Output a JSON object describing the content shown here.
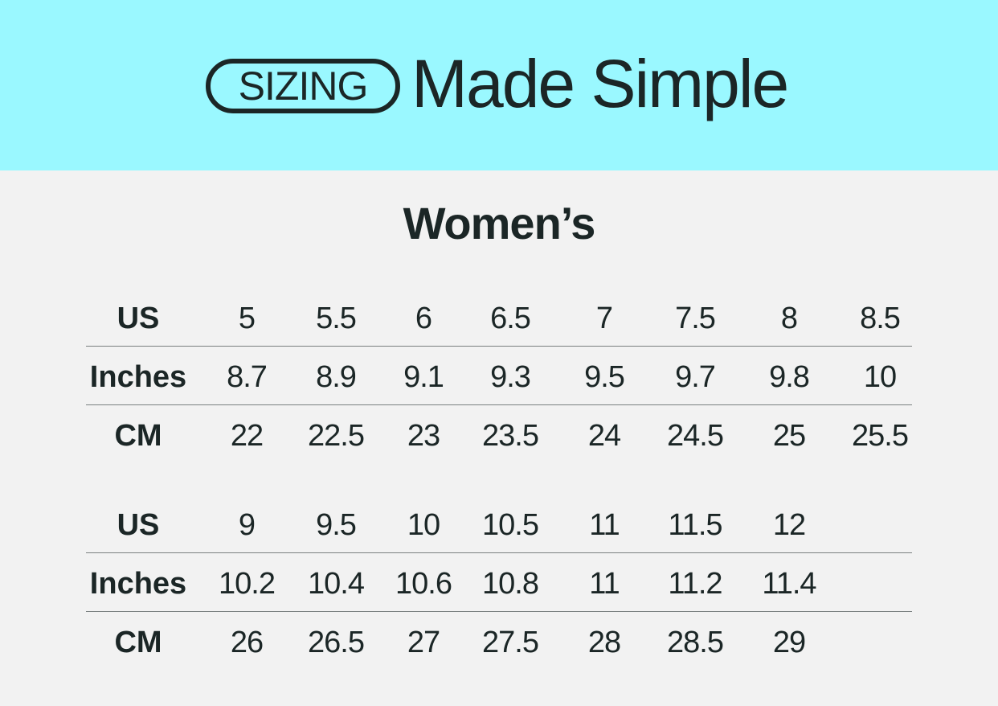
{
  "header": {
    "badge": "SIZING",
    "headline": "Made Simple",
    "background_color": "#9af8ff",
    "text_color": "#1b2626"
  },
  "title": "Women’s",
  "tables": [
    {
      "rows": [
        {
          "label": "US",
          "values": [
            "5",
            "5.5",
            "6",
            "6.5",
            "7",
            "7.5",
            "8",
            "8.5"
          ]
        },
        {
          "label": "Inches",
          "values": [
            "8.7",
            "8.9",
            "9.1",
            "9.3",
            "9.5",
            "9.7",
            "9.8",
            "10"
          ]
        },
        {
          "label": "CM",
          "values": [
            "22",
            "22.5",
            "23",
            "23.5",
            "24",
            "24.5",
            "25",
            "25.5"
          ]
        }
      ]
    },
    {
      "rows": [
        {
          "label": "US",
          "values": [
            "9",
            "9.5",
            "10",
            "10.5",
            "11",
            "11.5",
            "12"
          ]
        },
        {
          "label": "Inches",
          "values": [
            "10.2",
            "10.4",
            "10.6",
            "10.8",
            "11",
            "11.2",
            "11.4"
          ]
        },
        {
          "label": "CM",
          "values": [
            "26",
            "26.5",
            "27",
            "27.5",
            "28",
            "28.5",
            "29"
          ]
        }
      ]
    }
  ]
}
